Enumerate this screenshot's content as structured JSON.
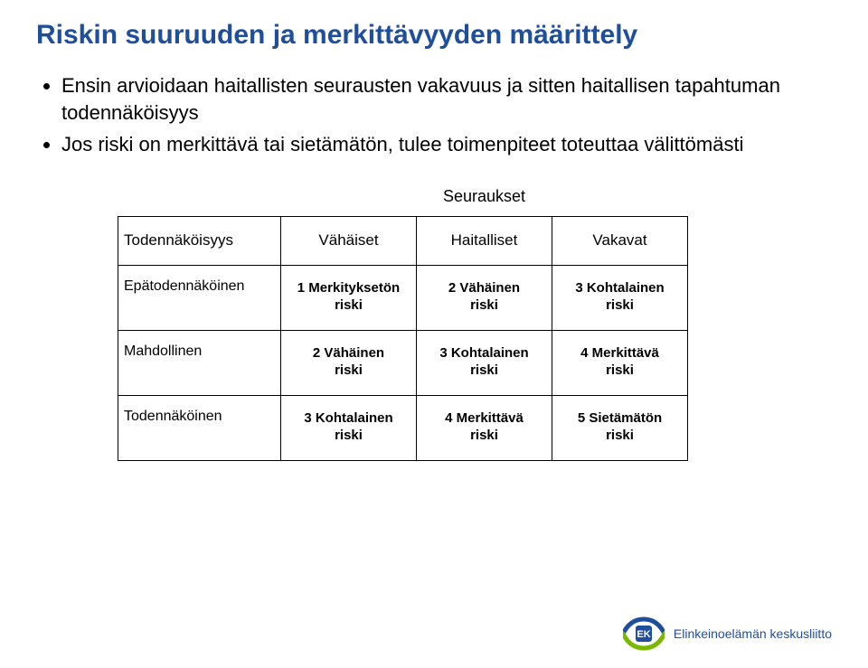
{
  "title": "Riskin suuruuden ja merkittävyyden määrittely",
  "bullets": [
    "Ensin arvioidaan haitallisten seurausten vakavuus ja sitten haitallisen tapahtuman todennäköisyys",
    "Jos riski on merkittävä tai sietämätön, tulee toimenpiteet toteuttaa välittömästi"
  ],
  "matrix": {
    "consequences_label": "Seuraukset",
    "probability_label": "Todennäköisyys",
    "col_headers": [
      "Vähäiset",
      "Haitalliset",
      "Vakavat"
    ],
    "row_headers": [
      "Epätodennäköinen",
      "Mahdollinen",
      "Todennäköinen"
    ],
    "cells": [
      [
        "1 Merkityksetön riski",
        "2 Vähäinen riski",
        "3 Kohtalainen riski"
      ],
      [
        "2 Vähäinen riski",
        "3 Kohtalainen riski",
        "4 Merkittävä riski"
      ],
      [
        "3 Kohtalainen riski",
        "4 Merkittävä riski",
        "5 Sietämätön riski"
      ]
    ],
    "border_color": "#000000",
    "bg_color": "#ffffff",
    "text_color": "#000000"
  },
  "footer": {
    "org": "Elinkeinoelämän keskusliitto",
    "logo_colors": {
      "blue": "#1f4e9c",
      "green": "#7ab800"
    }
  },
  "colors": {
    "title": "#1f4e9c",
    "body_text": "#000000",
    "background": "#ffffff"
  },
  "fonts": {
    "family": "Arial",
    "title_size_pt": 22,
    "body_size_pt": 16,
    "table_header_size_pt": 13,
    "table_cell_size_pt": 11
  }
}
